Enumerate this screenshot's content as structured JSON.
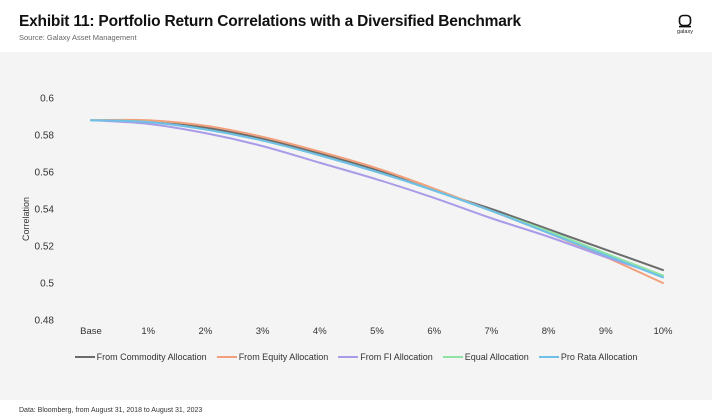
{
  "header": {
    "title": "Exhibit 11: Portfolio Return Correlations with a Diversified Benchmark",
    "subtitle": "Source: Galaxy Asset Management",
    "logo_text": "galaxy"
  },
  "footer": {
    "note": "Data: Bloomberg, from August 31, 2018 to August 31, 2023"
  },
  "chart_data": {
    "type": "line",
    "ylabel": "Correlation",
    "xlabel": "",
    "categories": [
      "Base",
      "1%",
      "2%",
      "3%",
      "4%",
      "5%",
      "6%",
      "7%",
      "8%",
      "9%",
      "10%"
    ],
    "ylim": [
      0.48,
      0.6
    ],
    "yticks": [
      0.48,
      0.5,
      0.52,
      0.54,
      0.56,
      0.58,
      0.6
    ],
    "ytick_labels": [
      "0.48",
      "0.5",
      "0.52",
      "0.54",
      "0.56",
      "0.58",
      "0.6"
    ],
    "grid": false,
    "legend_position": "bottom",
    "series": [
      {
        "name": "From Commodity Allocation",
        "color": "#6b6b6b",
        "values": [
          0.588,
          0.587,
          0.584,
          0.578,
          0.57,
          0.561,
          0.55,
          0.54,
          0.529,
          0.518,
          0.507
        ]
      },
      {
        "name": "From Equity Allocation",
        "color": "#f2a07b",
        "values": [
          0.588,
          0.588,
          0.585,
          0.579,
          0.571,
          0.562,
          0.551,
          0.539,
          0.527,
          0.514,
          0.5
        ]
      },
      {
        "name": "From FI Allocation",
        "color": "#a99be8",
        "values": [
          0.588,
          0.586,
          0.581,
          0.574,
          0.565,
          0.556,
          0.546,
          0.535,
          0.525,
          0.514,
          0.504
        ]
      },
      {
        "name": "Equal Allocation",
        "color": "#8fe3a4",
        "values": [
          0.588,
          0.587,
          0.583,
          0.577,
          0.569,
          0.56,
          0.55,
          0.539,
          0.528,
          0.516,
          0.504
        ]
      },
      {
        "name": "Pro Rata Allocation",
        "color": "#6fbfe8",
        "values": [
          0.588,
          0.587,
          0.583,
          0.577,
          0.569,
          0.56,
          0.55,
          0.539,
          0.527,
          0.515,
          0.503
        ]
      }
    ]
  }
}
